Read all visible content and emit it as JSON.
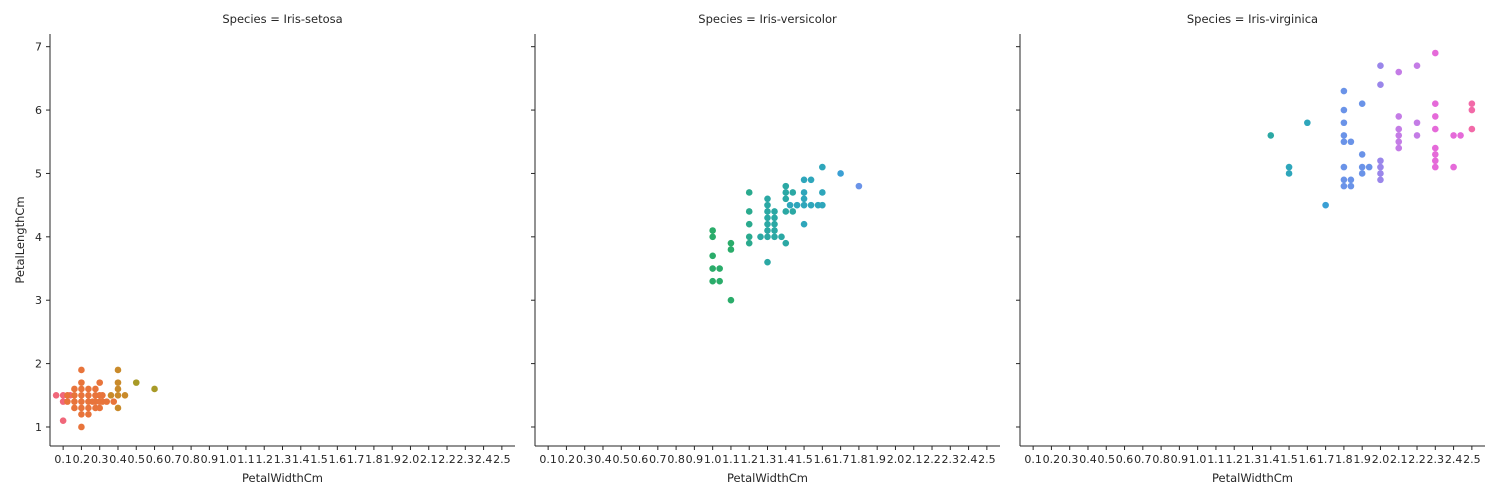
{
  "chart_data": {
    "type": "scatter",
    "xlabel": "PetalWidthCm",
    "ylabel": "PetalLengthCm",
    "x_ticks": [
      "0.1",
      "0.2",
      "0.3",
      "0.4",
      "0.5",
      "0.6",
      "0.7",
      "0.8",
      "0.9",
      "1.0",
      "1.1",
      "1.2",
      "1.3",
      "1.4",
      "1.5",
      "1.6",
      "1.7",
      "1.8",
      "1.9",
      "2.0",
      "2.1",
      "2.2",
      "2.3",
      "2.4",
      "2.5"
    ],
    "y_ticks": [
      "1",
      "2",
      "3",
      "4",
      "5",
      "6",
      "7"
    ],
    "ylim": [
      0.7,
      7.2
    ],
    "grid": false,
    "hue": "PetalWidthCm",
    "facets": [
      {
        "title": "Species = Iris-setosa",
        "points": [
          [
            0.1,
            1.5
          ],
          [
            0.1,
            1.4
          ],
          [
            0.1,
            1.1
          ],
          [
            0.1,
            1.5
          ],
          [
            0.1,
            1.5
          ],
          [
            0.2,
            1.4
          ],
          [
            0.2,
            1.3
          ],
          [
            0.2,
            1.5
          ],
          [
            0.2,
            1.4
          ],
          [
            0.2,
            1.5
          ],
          [
            0.2,
            1.6
          ],
          [
            0.2,
            1.4
          ],
          [
            0.2,
            1.2
          ],
          [
            0.2,
            1.3
          ],
          [
            0.2,
            1.0
          ],
          [
            0.2,
            1.7
          ],
          [
            0.2,
            1.9
          ],
          [
            0.2,
            1.6
          ],
          [
            0.2,
            1.5
          ],
          [
            0.2,
            1.4
          ],
          [
            0.2,
            1.6
          ],
          [
            0.2,
            1.3
          ],
          [
            0.2,
            1.2
          ],
          [
            0.2,
            1.5
          ],
          [
            0.2,
            1.4
          ],
          [
            0.2,
            1.3
          ],
          [
            0.2,
            1.5
          ],
          [
            0.2,
            1.6
          ],
          [
            0.2,
            1.4
          ],
          [
            0.2,
            1.5
          ],
          [
            0.3,
            1.4
          ],
          [
            0.3,
            1.7
          ],
          [
            0.3,
            1.5
          ],
          [
            0.3,
            1.4
          ],
          [
            0.3,
            1.3
          ],
          [
            0.3,
            1.4
          ],
          [
            0.3,
            1.4
          ],
          [
            0.4,
            1.5
          ],
          [
            0.4,
            1.3
          ],
          [
            0.4,
            1.5
          ],
          [
            0.4,
            1.7
          ],
          [
            0.4,
            1.9
          ],
          [
            0.4,
            1.6
          ],
          [
            0.4,
            1.5
          ],
          [
            0.5,
            1.7
          ],
          [
            0.6,
            1.6
          ]
        ]
      },
      {
        "title": "Species = Iris-versicolor",
        "points": [
          [
            1.0,
            3.3
          ],
          [
            1.0,
            3.5
          ],
          [
            1.0,
            3.7
          ],
          [
            1.0,
            4.0
          ],
          [
            1.0,
            4.1
          ],
          [
            1.0,
            3.5
          ],
          [
            1.0,
            3.3
          ],
          [
            1.1,
            3.0
          ],
          [
            1.1,
            3.9
          ],
          [
            1.1,
            3.8
          ],
          [
            1.2,
            4.7
          ],
          [
            1.2,
            4.4
          ],
          [
            1.2,
            4.2
          ],
          [
            1.2,
            4.0
          ],
          [
            1.2,
            3.9
          ],
          [
            1.3,
            4.0
          ],
          [
            1.3,
            4.1
          ],
          [
            1.3,
            4.2
          ],
          [
            1.3,
            4.3
          ],
          [
            1.3,
            4.4
          ],
          [
            1.3,
            4.5
          ],
          [
            1.3,
            4.6
          ],
          [
            1.3,
            3.6
          ],
          [
            1.3,
            4.0
          ],
          [
            1.3,
            4.1
          ],
          [
            1.3,
            4.2
          ],
          [
            1.3,
            4.3
          ],
          [
            1.3,
            4.4
          ],
          [
            1.3,
            4.0
          ],
          [
            1.3,
            4.0
          ],
          [
            1.4,
            4.7
          ],
          [
            1.4,
            4.4
          ],
          [
            1.4,
            4.6
          ],
          [
            1.4,
            4.8
          ],
          [
            1.4,
            3.9
          ],
          [
            1.4,
            4.4
          ],
          [
            1.4,
            4.7
          ],
          [
            1.5,
            4.5
          ],
          [
            1.5,
            4.9
          ],
          [
            1.5,
            4.6
          ],
          [
            1.5,
            4.5
          ],
          [
            1.5,
            4.7
          ],
          [
            1.5,
            4.2
          ],
          [
            1.5,
            4.5
          ],
          [
            1.5,
            4.9
          ],
          [
            1.5,
            4.5
          ],
          [
            1.5,
            4.5
          ],
          [
            1.6,
            5.1
          ],
          [
            1.6,
            4.5
          ],
          [
            1.6,
            4.7
          ],
          [
            1.7,
            5.0
          ],
          [
            1.8,
            4.8
          ]
        ]
      },
      {
        "title": "Species = Iris-virginica",
        "points": [
          [
            1.4,
            5.6
          ],
          [
            1.5,
            5.0
          ],
          [
            1.5,
            5.1
          ],
          [
            1.6,
            5.8
          ],
          [
            1.7,
            4.5
          ],
          [
            1.8,
            5.1
          ],
          [
            1.8,
            5.8
          ],
          [
            1.8,
            6.3
          ],
          [
            1.8,
            5.6
          ],
          [
            1.8,
            4.8
          ],
          [
            1.8,
            4.9
          ],
          [
            1.8,
            5.5
          ],
          [
            1.8,
            6.0
          ],
          [
            1.8,
            4.8
          ],
          [
            1.8,
            5.5
          ],
          [
            1.8,
            4.9
          ],
          [
            1.9,
            5.1
          ],
          [
            1.9,
            5.0
          ],
          [
            1.9,
            5.3
          ],
          [
            1.9,
            6.1
          ],
          [
            1.9,
            5.1
          ],
          [
            2.0,
            5.1
          ],
          [
            2.0,
            5.0
          ],
          [
            2.0,
            6.7
          ],
          [
            2.0,
            4.9
          ],
          [
            2.0,
            6.4
          ],
          [
            2.0,
            5.2
          ],
          [
            2.1,
            5.9
          ],
          [
            2.1,
            5.6
          ],
          [
            2.1,
            5.5
          ],
          [
            2.1,
            6.6
          ],
          [
            2.1,
            5.7
          ],
          [
            2.1,
            5.4
          ],
          [
            2.2,
            5.8
          ],
          [
            2.2,
            6.7
          ],
          [
            2.2,
            5.6
          ],
          [
            2.3,
            6.1
          ],
          [
            2.3,
            5.9
          ],
          [
            2.3,
            5.3
          ],
          [
            2.3,
            5.7
          ],
          [
            2.3,
            6.9
          ],
          [
            2.3,
            5.1
          ],
          [
            2.3,
            5.2
          ],
          [
            2.3,
            5.4
          ],
          [
            2.4,
            5.6
          ],
          [
            2.4,
            5.1
          ],
          [
            2.4,
            5.6
          ],
          [
            2.5,
            6.0
          ],
          [
            2.5,
            6.1
          ],
          [
            2.5,
            5.7
          ]
        ]
      }
    ]
  }
}
